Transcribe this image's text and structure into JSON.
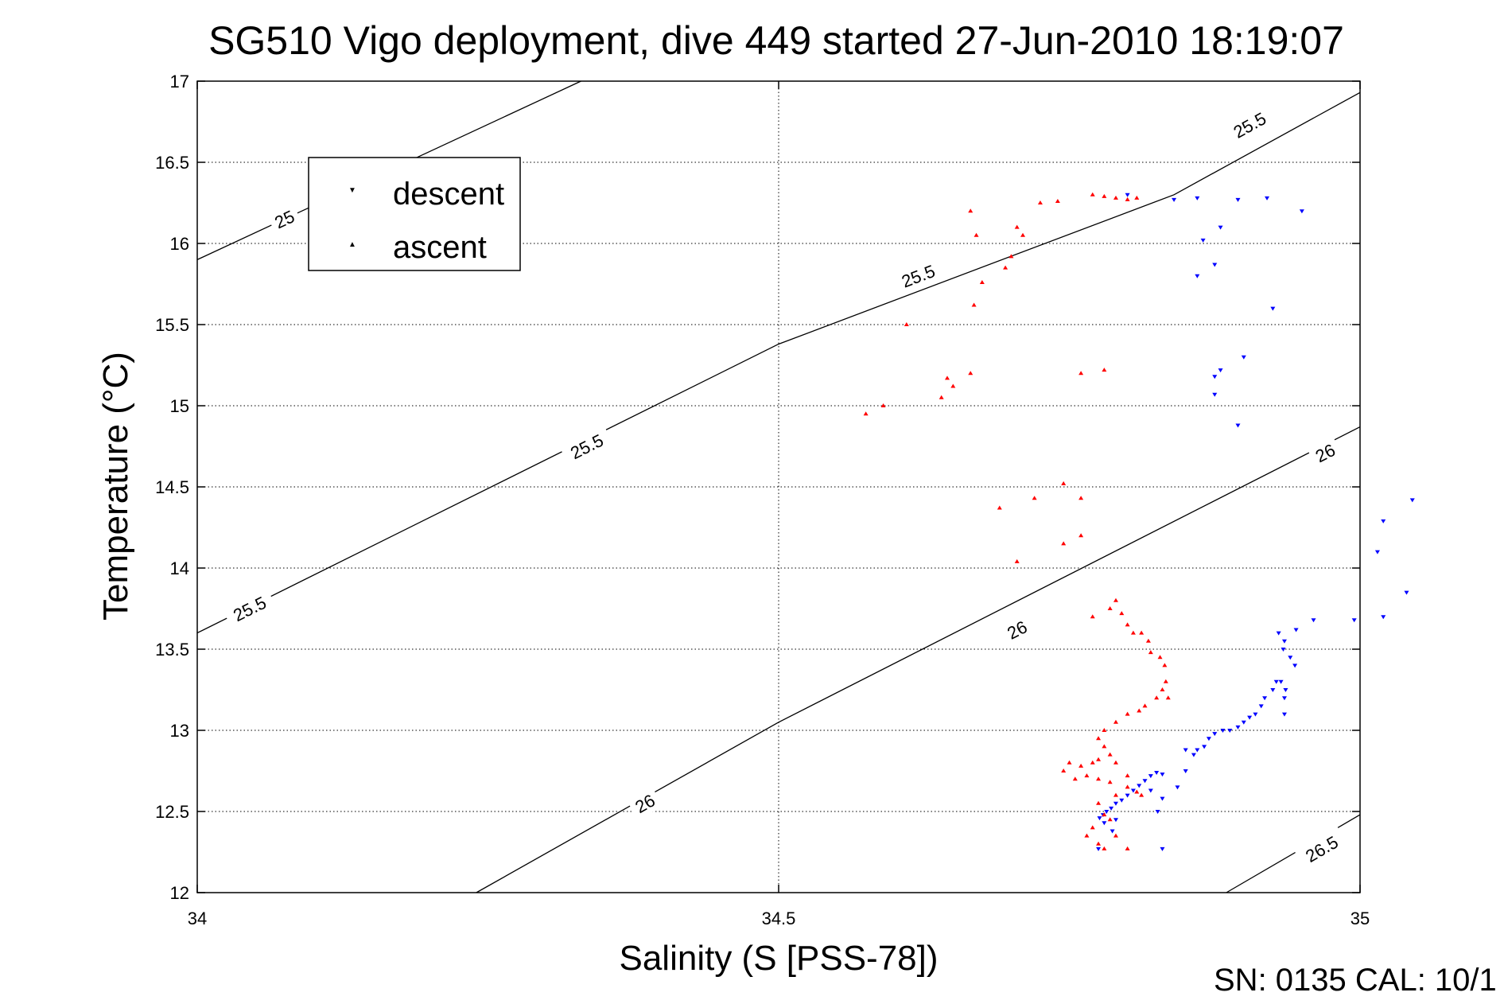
{
  "chart_data": {
    "type": "scatter",
    "title": "SG510 Vigo deployment, dive 449 started 27-Jun-2010 18:19:07",
    "xlabel": "Salinity (S [PSS-78])",
    "ylabel": "Temperature (°C)",
    "xlim": [
      34,
      35
    ],
    "ylim": [
      12,
      17
    ],
    "x_ticks": [
      "34",
      "34.5",
      "35"
    ],
    "y_ticks": [
      "12",
      "12.5",
      "13",
      "13.5",
      "14",
      "14.5",
      "15",
      "15.5",
      "16",
      "16.5",
      "17"
    ],
    "grid": true,
    "legend_position": "top-left",
    "footer": "SN: 0135  CAL: 10/1",
    "contours": [
      {
        "label": "25",
        "points": [
          [
            34.0,
            15.9
          ],
          [
            34.33,
            17.0
          ]
        ],
        "label_at": [
          34.075,
          16.15
        ]
      },
      {
        "label": "25.5",
        "points": [
          [
            34.0,
            13.6
          ],
          [
            34.5,
            15.38
          ],
          [
            34.84,
            16.3
          ],
          [
            35.0,
            16.93
          ]
        ],
        "label_at": [
          [
            34.045,
            13.75
          ],
          [
            34.335,
            14.75
          ],
          [
            34.62,
            15.8
          ],
          [
            34.905,
            16.73
          ]
        ]
      },
      {
        "label": "26",
        "points": [
          [
            34.24,
            12.0
          ],
          [
            34.5,
            13.05
          ],
          [
            35.0,
            14.87
          ]
        ],
        "label_at": [
          [
            34.385,
            12.55
          ],
          [
            34.705,
            13.62
          ],
          [
            34.97,
            14.71
          ]
        ]
      },
      {
        "label": "26.5",
        "points": [
          [
            34.885,
            12.0
          ],
          [
            35.0,
            12.48
          ]
        ],
        "label_at": [
          34.967,
          12.27
        ]
      }
    ],
    "series": [
      {
        "name": "descent",
        "color": "#0000ff",
        "marker": "triangle-down",
        "points": [
          [
            34.775,
            12.27
          ],
          [
            34.787,
            12.38
          ],
          [
            34.78,
            12.43
          ],
          [
            34.776,
            12.46
          ],
          [
            34.779,
            12.48
          ],
          [
            34.782,
            12.5
          ],
          [
            34.786,
            12.52
          ],
          [
            34.79,
            12.55
          ],
          [
            34.795,
            12.57
          ],
          [
            34.8,
            12.6
          ],
          [
            34.805,
            12.63
          ],
          [
            34.81,
            12.66
          ],
          [
            34.815,
            12.69
          ],
          [
            34.82,
            12.72
          ],
          [
            34.825,
            12.74
          ],
          [
            34.83,
            12.73
          ],
          [
            34.82,
            12.63
          ],
          [
            34.83,
            12.58
          ],
          [
            34.826,
            12.5
          ],
          [
            34.79,
            12.45
          ],
          [
            34.843,
            12.65
          ],
          [
            34.85,
            12.75
          ],
          [
            34.857,
            12.85
          ],
          [
            34.83,
            12.27
          ],
          [
            34.85,
            12.88
          ],
          [
            34.86,
            12.88
          ],
          [
            34.866,
            12.9
          ],
          [
            34.87,
            12.95
          ],
          [
            34.875,
            12.98
          ],
          [
            34.882,
            13.0
          ],
          [
            34.888,
            13.0
          ],
          [
            34.895,
            13.02
          ],
          [
            34.9,
            13.05
          ],
          [
            34.905,
            13.08
          ],
          [
            34.91,
            13.1
          ],
          [
            34.915,
            13.15
          ],
          [
            34.918,
            13.2
          ],
          [
            34.925,
            13.25
          ],
          [
            34.928,
            13.3
          ],
          [
            34.932,
            13.3
          ],
          [
            34.936,
            13.25
          ],
          [
            34.935,
            13.2
          ],
          [
            34.935,
            13.1
          ],
          [
            34.944,
            13.4
          ],
          [
            34.94,
            13.45
          ],
          [
            34.934,
            13.5
          ],
          [
            34.935,
            13.55
          ],
          [
            34.93,
            13.6
          ],
          [
            34.945,
            13.62
          ],
          [
            34.96,
            13.68
          ],
          [
            34.995,
            13.68
          ],
          [
            35.02,
            13.7
          ],
          [
            35.04,
            13.85
          ],
          [
            35.015,
            14.1
          ],
          [
            35.02,
            14.29
          ],
          [
            35.045,
            14.42
          ],
          [
            34.895,
            14.88
          ],
          [
            34.875,
            15.07
          ],
          [
            34.875,
            15.18
          ],
          [
            34.88,
            15.22
          ],
          [
            34.9,
            15.3
          ],
          [
            34.925,
            15.6
          ],
          [
            34.86,
            15.8
          ],
          [
            34.875,
            15.87
          ],
          [
            34.865,
            16.02
          ],
          [
            34.88,
            16.1
          ],
          [
            34.895,
            16.27
          ],
          [
            34.92,
            16.28
          ],
          [
            34.95,
            16.2
          ],
          [
            34.84,
            16.27
          ],
          [
            34.86,
            16.28
          ],
          [
            34.8,
            16.3
          ]
        ]
      },
      {
        "name": "ascent",
        "color": "#ff0000",
        "marker": "triangle-up",
        "points": [
          [
            34.575,
            14.95
          ],
          [
            34.59,
            15.0
          ],
          [
            34.61,
            15.5
          ],
          [
            34.64,
            15.05
          ],
          [
            34.645,
            15.17
          ],
          [
            34.65,
            15.12
          ],
          [
            34.665,
            15.2
          ],
          [
            34.668,
            15.62
          ],
          [
            34.675,
            15.76
          ],
          [
            34.67,
            16.05
          ],
          [
            34.665,
            16.2
          ],
          [
            34.695,
            15.85
          ],
          [
            34.7,
            15.92
          ],
          [
            34.705,
            16.1
          ],
          [
            34.71,
            16.05
          ],
          [
            34.725,
            16.25
          ],
          [
            34.74,
            16.26
          ],
          [
            34.76,
            15.2
          ],
          [
            34.78,
            15.22
          ],
          [
            34.77,
            16.3
          ],
          [
            34.78,
            16.29
          ],
          [
            34.79,
            16.28
          ],
          [
            34.8,
            16.27
          ],
          [
            34.808,
            16.28
          ],
          [
            34.69,
            14.37
          ],
          [
            34.72,
            14.43
          ],
          [
            34.745,
            14.52
          ],
          [
            34.76,
            14.43
          ],
          [
            34.745,
            14.15
          ],
          [
            34.76,
            14.2
          ],
          [
            34.705,
            14.04
          ],
          [
            34.77,
            13.7
          ],
          [
            34.785,
            13.75
          ],
          [
            34.79,
            13.8
          ],
          [
            34.795,
            13.72
          ],
          [
            34.8,
            13.65
          ],
          [
            34.805,
            13.6
          ],
          [
            34.812,
            13.6
          ],
          [
            34.818,
            13.55
          ],
          [
            34.82,
            13.48
          ],
          [
            34.828,
            13.45
          ],
          [
            34.832,
            13.4
          ],
          [
            34.833,
            13.3
          ],
          [
            34.83,
            13.25
          ],
          [
            34.825,
            13.2
          ],
          [
            34.835,
            13.2
          ],
          [
            34.815,
            13.15
          ],
          [
            34.81,
            13.12
          ],
          [
            34.8,
            13.1
          ],
          [
            34.79,
            13.05
          ],
          [
            34.78,
            13.0
          ],
          [
            34.775,
            12.95
          ],
          [
            34.78,
            12.9
          ],
          [
            34.785,
            12.85
          ],
          [
            34.775,
            12.82
          ],
          [
            34.77,
            12.8
          ],
          [
            34.76,
            12.78
          ],
          [
            34.75,
            12.8
          ],
          [
            34.745,
            12.75
          ],
          [
            34.755,
            12.7
          ],
          [
            34.765,
            12.72
          ],
          [
            34.775,
            12.7
          ],
          [
            34.785,
            12.68
          ],
          [
            34.79,
            12.6
          ],
          [
            34.8,
            12.65
          ],
          [
            34.808,
            12.62
          ],
          [
            34.812,
            12.6
          ],
          [
            34.775,
            12.55
          ],
          [
            34.78,
            12.48
          ],
          [
            34.77,
            12.4
          ],
          [
            34.765,
            12.35
          ],
          [
            34.775,
            12.3
          ],
          [
            34.78,
            12.27
          ],
          [
            34.8,
            12.27
          ],
          [
            34.79,
            12.35
          ],
          [
            34.785,
            12.45
          ],
          [
            34.8,
            12.72
          ],
          [
            34.79,
            12.8
          ]
        ]
      }
    ]
  }
}
